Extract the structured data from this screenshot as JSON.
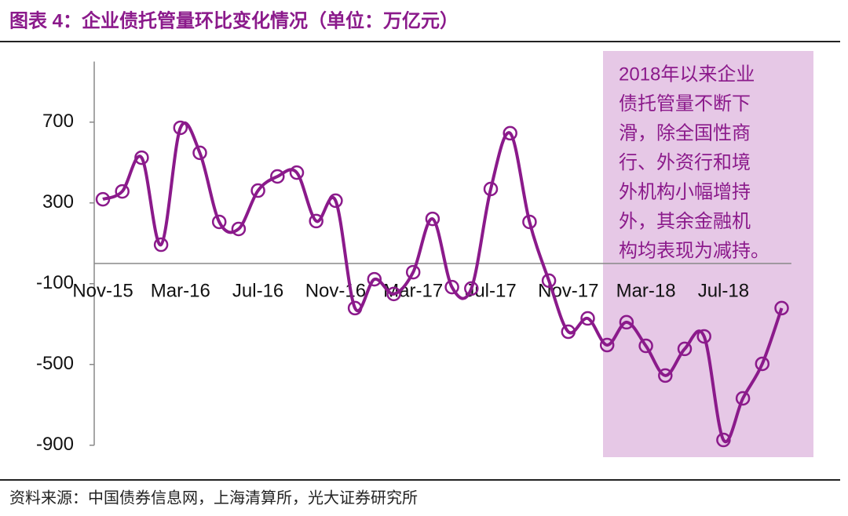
{
  "chart_data": {
    "type": "line",
    "title": "图表 4：企业债托管量环比变化情况（单位：万亿元）",
    "source": "资料来源：中国债券信息网，上海清算所，光大证券研究所",
    "annotation": [
      "2018年以来企业",
      "债托管量不断下",
      "滑，除全国性商",
      "行、外资行和境",
      "外机构小幅增持",
      "外，其余金融机",
      "构均表现为减持。"
    ],
    "categories": [
      "Nov-15",
      null,
      null,
      null,
      "Mar-16",
      null,
      null,
      null,
      "Jul-16",
      null,
      null,
      null,
      "Nov-16",
      null,
      null,
      null,
      "Mar-17",
      null,
      null,
      null,
      "Jul-17",
      null,
      null,
      null,
      "Nov-17",
      null,
      null,
      null,
      "Mar-18",
      null,
      null,
      null,
      "Jul-18",
      null,
      null,
      null
    ],
    "values": [
      318,
      357,
      524,
      93,
      672,
      548,
      206,
      171,
      361,
      431,
      450,
      210,
      311,
      -221,
      -78,
      -151,
      -43,
      221,
      -117,
      -124,
      369,
      645,
      206,
      -85,
      -338,
      -272,
      -404,
      -291,
      -408,
      -555,
      -423,
      -361,
      -874,
      -668,
      -497,
      -221
    ],
    "color": "#8b1a8b",
    "highlight_color": "#e6c8e6",
    "ylim": [
      -900,
      1000
    ],
    "yticks": [
      -900,
      -500,
      -100,
      300,
      700
    ]
  }
}
